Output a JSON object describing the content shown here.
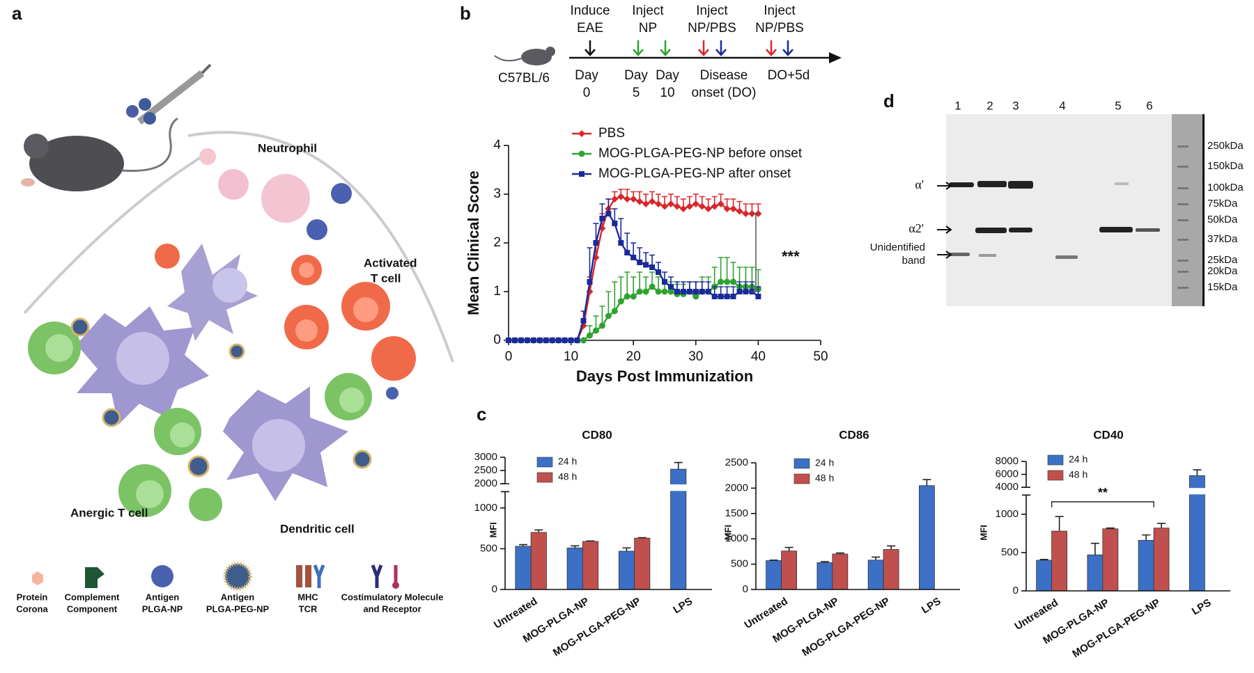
{
  "panel_labels": [
    "a",
    "b",
    "c",
    "d"
  ],
  "diagram": {
    "labels": [
      [
        "Neutrophil"
      ],
      [
        "Activated",
        "T cell"
      ],
      [
        "Anergic T cell"
      ],
      [
        "Dendritic cell"
      ]
    ],
    "legend": [
      [
        "Protein",
        "Corona"
      ],
      [
        "Complement",
        "Component"
      ],
      [
        "Antigen",
        "PLGA-NP"
      ],
      [
        "Antigen",
        "PLGA-PEG-NP"
      ],
      [
        "MHC",
        "TCR"
      ],
      [
        "Costimulatory Molecule",
        "and Receptor"
      ]
    ]
  },
  "timeline": {
    "strain": "C57BL/6",
    "events": [
      [
        "Induce",
        "EAE"
      ],
      [
        "Inject",
        "NP"
      ],
      [
        "Inject",
        "NP/PBS"
      ],
      [
        "Inject",
        "NP/PBS"
      ]
    ],
    "times": [
      [
        "Day",
        "0"
      ],
      [
        "Day",
        "5"
      ],
      [
        "Day",
        "10"
      ],
      [
        "Disease",
        "onset (DO)"
      ],
      [
        "DO+5d"
      ]
    ]
  },
  "chart_data": [
    {
      "type": "line",
      "xlabel": "Days Post Immunization",
      "ylabel": "Mean Clinical Score",
      "annotation": "***",
      "x": [
        0,
        1,
        2,
        3,
        4,
        5,
        6,
        7,
        8,
        9,
        10,
        11,
        12,
        13,
        14,
        15,
        16,
        17,
        18,
        19,
        20,
        21,
        22,
        23,
        24,
        25,
        26,
        27,
        28,
        29,
        30,
        31,
        32,
        33,
        34,
        35,
        36,
        37,
        38,
        39,
        40
      ],
      "xlim": [
        0,
        50
      ],
      "xticks": [
        0,
        10,
        20,
        30,
        40,
        50
      ],
      "ylim": [
        0,
        4
      ],
      "yticks": [
        0,
        1,
        2,
        3,
        4
      ],
      "series": [
        {
          "name": "PBS",
          "color": "#d9262b",
          "marker": "diamond",
          "values": [
            0,
            0,
            0,
            0,
            0,
            0,
            0,
            0,
            0,
            0,
            0,
            0,
            0.3,
            1.0,
            1.7,
            2.3,
            2.7,
            2.9,
            2.95,
            2.9,
            2.9,
            2.85,
            2.8,
            2.85,
            2.8,
            2.75,
            2.8,
            2.75,
            2.7,
            2.75,
            2.8,
            2.75,
            2.7,
            2.75,
            2.8,
            2.7,
            2.7,
            2.65,
            2.6,
            2.6,
            2.6
          ],
          "errors": [
            0,
            0,
            0,
            0,
            0,
            0,
            0,
            0,
            0,
            0,
            0,
            0,
            0.1,
            0.3,
            0.3,
            0.3,
            0.2,
            0.15,
            0.15,
            0.2,
            0.15,
            0.2,
            0.2,
            0.2,
            0.2,
            0.2,
            0.2,
            0.2,
            0.2,
            0.2,
            0.2,
            0.2,
            0.2,
            0.2,
            0.2,
            0.2,
            0.2,
            0.2,
            0.2,
            0.2,
            0.2
          ]
        },
        {
          "name": "MOG-PLGA-PEG-NP before onset",
          "color": "#2ea32e",
          "marker": "circle",
          "values": [
            0,
            0,
            0,
            0,
            0,
            0,
            0,
            0,
            0,
            0,
            0,
            0,
            0,
            0.1,
            0.2,
            0.3,
            0.5,
            0.6,
            0.8,
            0.9,
            0.9,
            1.0,
            1.0,
            1.1,
            1.0,
            1.0,
            1.0,
            0.95,
            0.95,
            1.0,
            0.9,
            1.0,
            1.0,
            1.1,
            1.2,
            1.2,
            1.2,
            1.1,
            1.1,
            1.1,
            1.05
          ],
          "errors": [
            0,
            0,
            0,
            0,
            0,
            0,
            0,
            0,
            0,
            0,
            0,
            0,
            0,
            0.2,
            0.3,
            0.4,
            0.5,
            0.6,
            0.5,
            0.5,
            0.4,
            0.4,
            0.3,
            0.3,
            0.3,
            0.2,
            0.2,
            0.2,
            0.2,
            0.2,
            0.3,
            0.3,
            0.3,
            0.4,
            0.5,
            0.5,
            0.4,
            0.4,
            0.4,
            0.4,
            0.4
          ]
        },
        {
          "name": "MOG-PLGA-PEG-NP after onset",
          "color": "#1a2a9a",
          "marker": "square",
          "values": [
            0,
            0,
            0,
            0,
            0,
            0,
            0,
            0,
            0,
            0,
            0,
            0,
            0.4,
            1.2,
            2.0,
            2.5,
            2.6,
            2.4,
            2.0,
            1.8,
            1.7,
            1.6,
            1.55,
            1.5,
            1.4,
            1.2,
            1.1,
            1.0,
            1.0,
            1.0,
            1.0,
            1.0,
            1.0,
            0.9,
            0.9,
            0.9,
            0.9,
            1.0,
            1.0,
            1.0,
            0.9
          ],
          "errors": [
            0,
            0,
            0,
            0,
            0,
            0,
            0,
            0,
            0,
            0,
            0,
            0,
            0.2,
            0.7,
            0.4,
            0.3,
            0.3,
            0.3,
            0.5,
            0.4,
            0.3,
            0.3,
            0.25,
            0.25,
            0.2,
            0.2,
            0.2,
            0.2,
            0.2,
            0.2,
            0.2,
            0.2,
            0.2,
            0.2,
            0.2,
            0.2,
            0.2,
            0.2,
            0.2,
            0.2,
            0.2
          ]
        }
      ]
    },
    {
      "type": "bar",
      "title": "CD80",
      "ylabel": "MFI",
      "categories": [
        "Untreated",
        "MOG-PLGA-NP",
        "MOG-PLGA-PEG-NP",
        "LPS"
      ],
      "ylim": [
        0,
        3000
      ],
      "ybreak": [
        1200,
        2000
      ],
      "yticks": [
        0,
        500,
        1000,
        2000,
        2500,
        3000
      ],
      "series": [
        {
          "name": "24 h",
          "color": "#3b70c6",
          "values": [
            530,
            510,
            470,
            2550
          ],
          "errors": [
            20,
            25,
            40,
            250
          ]
        },
        {
          "name": "48 h",
          "color": "#c0504d",
          "values": [
            700,
            590,
            630,
            null
          ],
          "errors": [
            30,
            5,
            5,
            null
          ]
        }
      ]
    },
    {
      "type": "bar",
      "title": "CD86",
      "ylabel": "MFI",
      "categories": [
        "Untreated",
        "MOG-PLGA-NP",
        "MOG-PLGA-PEG-NP",
        "LPS"
      ],
      "ylim": [
        0,
        2500
      ],
      "yticks": [
        0,
        500,
        1000,
        1500,
        2000,
        2500
      ],
      "series": [
        {
          "name": "24 h",
          "color": "#3b70c6",
          "values": [
            570,
            530,
            580,
            2050
          ],
          "errors": [
            10,
            20,
            60,
            120
          ]
        },
        {
          "name": "48 h",
          "color": "#c0504d",
          "values": [
            760,
            700,
            790,
            null
          ],
          "errors": [
            70,
            20,
            70,
            null
          ]
        }
      ]
    },
    {
      "type": "bar",
      "title": "CD40",
      "ylabel": "MFI",
      "annotation": "**",
      "categories": [
        "Untreated",
        "MOG-PLGA-NP",
        "MOG-PLGA-PEG-NP",
        "LPS"
      ],
      "ylim": [
        0,
        8000
      ],
      "ybreak": [
        1250,
        4000
      ],
      "yticks": [
        0,
        500,
        1000,
        4000,
        6000,
        8000
      ],
      "series": [
        {
          "name": "24 h",
          "color": "#3b70c6",
          "values": [
            400,
            470,
            660,
            5800
          ],
          "errors": [
            10,
            150,
            70,
            900
          ]
        },
        {
          "name": "48 h",
          "color": "#c0504d",
          "values": [
            780,
            810,
            820,
            null
          ],
          "errors": [
            190,
            10,
            60,
            null
          ]
        }
      ]
    }
  ],
  "blot": {
    "lanes": [
      "1",
      "2",
      "3",
      "4",
      "5",
      "6"
    ],
    "bands": [
      "α'",
      "α2'"
    ],
    "unidentified": [
      "Unidentified",
      "band"
    ],
    "markers": [
      "250kDa",
      "150kDa",
      "100kDa",
      "75kDa",
      "50kDa",
      "37kDa",
      "25kDa",
      "20kDa",
      "15kDa"
    ]
  }
}
